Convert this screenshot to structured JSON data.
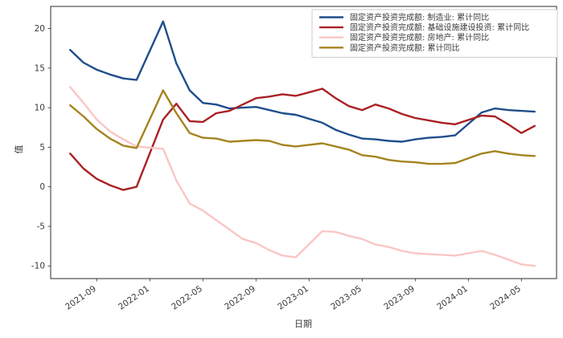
{
  "chart_data": {
    "type": "line",
    "title": "",
    "xlabel": "日期",
    "ylabel": "值",
    "grid": false,
    "background": "#ffffff",
    "axis_color": "#2b2b2b",
    "text_color": "#3a3a3a",
    "legend_position": "upper right",
    "legend_border_color": "#cccccc",
    "y_ticks": [
      20,
      15,
      10,
      5,
      0,
      -5,
      -10
    ],
    "ylim": [
      -11.6,
      22.8
    ],
    "xlim_months": [
      -1.47,
      36.65
    ],
    "x_tick_labels": [
      "2021-09",
      "2022-01",
      "2022-05",
      "2022-09",
      "2023-01",
      "2023-05",
      "2023-09",
      "2024-01",
      "2024-05"
    ],
    "x": [
      "2021-07",
      "2021-08",
      "2021-09",
      "2021-10",
      "2021-11",
      "2021-12",
      "2022-02",
      "2022-03",
      "2022-04",
      "2022-05",
      "2022-06",
      "2022-07",
      "2022-08",
      "2022-09",
      "2022-10",
      "2022-11",
      "2022-12",
      "2023-02",
      "2023-03",
      "2023-04",
      "2023-05",
      "2023-06",
      "2023-07",
      "2023-08",
      "2023-09",
      "2023-10",
      "2023-11",
      "2023-12",
      "2024-02",
      "2024-03",
      "2024-04",
      "2024-05",
      "2024-06"
    ],
    "series": [
      {
        "name": "固定资产投资完成额: 制造业: 累计同比",
        "color": "#1f4e8c",
        "values": [
          17.3,
          15.7,
          14.8,
          14.2,
          13.7,
          13.5,
          20.9,
          15.6,
          12.2,
          10.6,
          10.4,
          9.9,
          10.0,
          10.1,
          9.7,
          9.3,
          9.1,
          8.1,
          7.2,
          6.6,
          6.1,
          6.0,
          5.8,
          5.7,
          6.0,
          6.2,
          6.3,
          6.5,
          9.4,
          9.9,
          9.7,
          9.6,
          9.5
        ]
      },
      {
        "name": "固定资产投资完成额: 基础设施建设投资: 累计同比",
        "color": "#a92125",
        "values": [
          4.2,
          2.3,
          1.0,
          0.2,
          -0.4,
          0.0,
          8.5,
          10.5,
          8.3,
          8.2,
          9.3,
          9.6,
          10.4,
          11.2,
          11.4,
          11.7,
          11.5,
          12.4,
          11.2,
          10.2,
          9.7,
          10.4,
          9.9,
          9.2,
          8.7,
          8.4,
          8.1,
          7.9,
          9.0,
          8.9,
          7.9,
          6.8,
          7.7
        ]
      },
      {
        "name": "固定资产投资完成额: 房地产: 累计同比",
        "color": "#fac6c6",
        "values": [
          12.6,
          10.6,
          8.5,
          7.0,
          6.0,
          5.1,
          4.8,
          0.8,
          -2.1,
          -3.0,
          -4.2,
          -5.4,
          -6.6,
          -7.1,
          -8.0,
          -8.7,
          -8.9,
          -5.6,
          -5.7,
          -6.2,
          -6.6,
          -7.3,
          -7.6,
          -8.1,
          -8.4,
          -8.5,
          -8.6,
          -8.7,
          -8.1,
          -8.6,
          -9.2,
          -9.8,
          -10.0
        ]
      },
      {
        "name": "固定资产投资完成额: 累计同比",
        "color": "#a5831f",
        "values": [
          10.3,
          8.9,
          7.3,
          6.1,
          5.2,
          4.9,
          12.2,
          9.3,
          6.8,
          6.2,
          6.1,
          5.7,
          5.8,
          5.9,
          5.8,
          5.3,
          5.1,
          5.5,
          5.1,
          4.7,
          4.0,
          3.8,
          3.4,
          3.2,
          3.1,
          2.9,
          2.9,
          3.0,
          4.2,
          4.5,
          4.2,
          4.0,
          3.9
        ]
      }
    ]
  }
}
